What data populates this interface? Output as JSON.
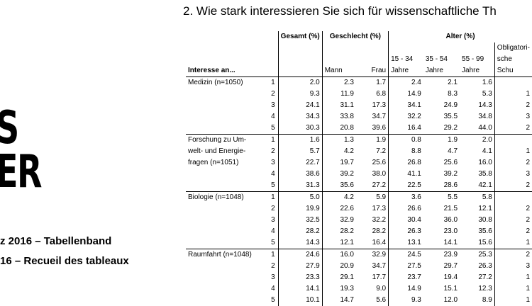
{
  "cover": {
    "big_line1": "S",
    "big_line2": "ER",
    "subtitle1": "z 2016 – Tabellenband",
    "subtitle2": "16 – Recueil des tableaux"
  },
  "heading": "2. Wie stark interessieren Sie sich für wissenschaftliche Th",
  "table": {
    "group_headers": [
      "Gesamt (%)",
      "Geschlecht (%)",
      "Alter (%)"
    ],
    "row_label_header": "Interesse an...",
    "sub_headers": [
      "Mann",
      "Frau",
      "15 - 34 Jahre",
      "35 - 54 Jahre",
      "55 - 99 Jahre",
      "Obligatori-sche Schu"
    ],
    "categories": [
      {
        "label": "Medizin (n=1050)",
        "rows": [
          {
            "idx": "1",
            "values": [
              "2.0",
              "2.3",
              "1.7",
              "2.4",
              "2.1",
              "1.6",
              ""
            ]
          },
          {
            "idx": "2",
            "values": [
              "9.3",
              "11.9",
              "6.8",
              "14.9",
              "8.3",
              "5.3",
              "1"
            ]
          },
          {
            "idx": "3",
            "values": [
              "24.1",
              "31.1",
              "17.3",
              "34.1",
              "24.9",
              "14.3",
              "2"
            ]
          },
          {
            "idx": "4",
            "values": [
              "34.3",
              "33.8",
              "34.7",
              "32.2",
              "35.5",
              "34.8",
              "3"
            ]
          },
          {
            "idx": "5",
            "values": [
              "30.3",
              "20.8",
              "39.6",
              "16.4",
              "29.2",
              "44.0",
              "2"
            ]
          }
        ]
      },
      {
        "label": "Forschung zu Umwelt- und Energiefragen (n=1051)",
        "label_lines": [
          "Forschung zu Um-",
          "welt- und Energie-",
          "fragen (n=1051)"
        ],
        "rows": [
          {
            "idx": "1",
            "values": [
              "1.6",
              "1.3",
              "1.9",
              "0.8",
              "1.9",
              "2.0",
              ""
            ]
          },
          {
            "idx": "2",
            "values": [
              "5.7",
              "4.2",
              "7.2",
              "8.8",
              "4.7",
              "4.1",
              "1"
            ]
          },
          {
            "idx": "3",
            "values": [
              "22.7",
              "19.7",
              "25.6",
              "26.8",
              "25.6",
              "16.0",
              "2"
            ]
          },
          {
            "idx": "4",
            "values": [
              "38.6",
              "39.2",
              "38.0",
              "41.1",
              "39.2",
              "35.8",
              "3"
            ]
          },
          {
            "idx": "5",
            "values": [
              "31.3",
              "35.6",
              "27.2",
              "22.5",
              "28.6",
              "42.1",
              "2"
            ]
          }
        ]
      },
      {
        "label": "Biologie (n=1048)",
        "rows": [
          {
            "idx": "1",
            "values": [
              "5.0",
              "4.2",
              "5.9",
              "3.6",
              "5.5",
              "5.8",
              ""
            ]
          },
          {
            "idx": "2",
            "values": [
              "19.9",
              "22.6",
              "17.3",
              "26.6",
              "21.5",
              "12.1",
              "2"
            ]
          },
          {
            "idx": "3",
            "values": [
              "32.5",
              "32.9",
              "32.2",
              "30.4",
              "36.0",
              "30.8",
              "2"
            ]
          },
          {
            "idx": "4",
            "values": [
              "28.2",
              "28.2",
              "28.2",
              "26.3",
              "23.0",
              "35.6",
              "2"
            ]
          },
          {
            "idx": "5",
            "values": [
              "14.3",
              "12.1",
              "16.4",
              "13.1",
              "14.1",
              "15.6",
              "1"
            ]
          }
        ]
      },
      {
        "label": "Raumfahrt (n=1048)",
        "rows": [
          {
            "idx": "1",
            "values": [
              "24.6",
              "16.0",
              "32.9",
              "24.5",
              "23.9",
              "25.3",
              "2"
            ]
          },
          {
            "idx": "2",
            "values": [
              "27.9",
              "20.9",
              "34.7",
              "27.5",
              "29.7",
              "26.3",
              "3"
            ]
          },
          {
            "idx": "3",
            "values": [
              "23.3",
              "29.1",
              "17.7",
              "23.7",
              "19.4",
              "27.2",
              "1"
            ]
          },
          {
            "idx": "4",
            "values": [
              "14.1",
              "19.3",
              "9.0",
              "14.9",
              "15.1",
              "12.3",
              "1"
            ]
          },
          {
            "idx": "5",
            "values": [
              "10.1",
              "14.7",
              "5.6",
              "9.3",
              "12.0",
              "8.9",
              "1"
            ]
          }
        ]
      }
    ]
  }
}
